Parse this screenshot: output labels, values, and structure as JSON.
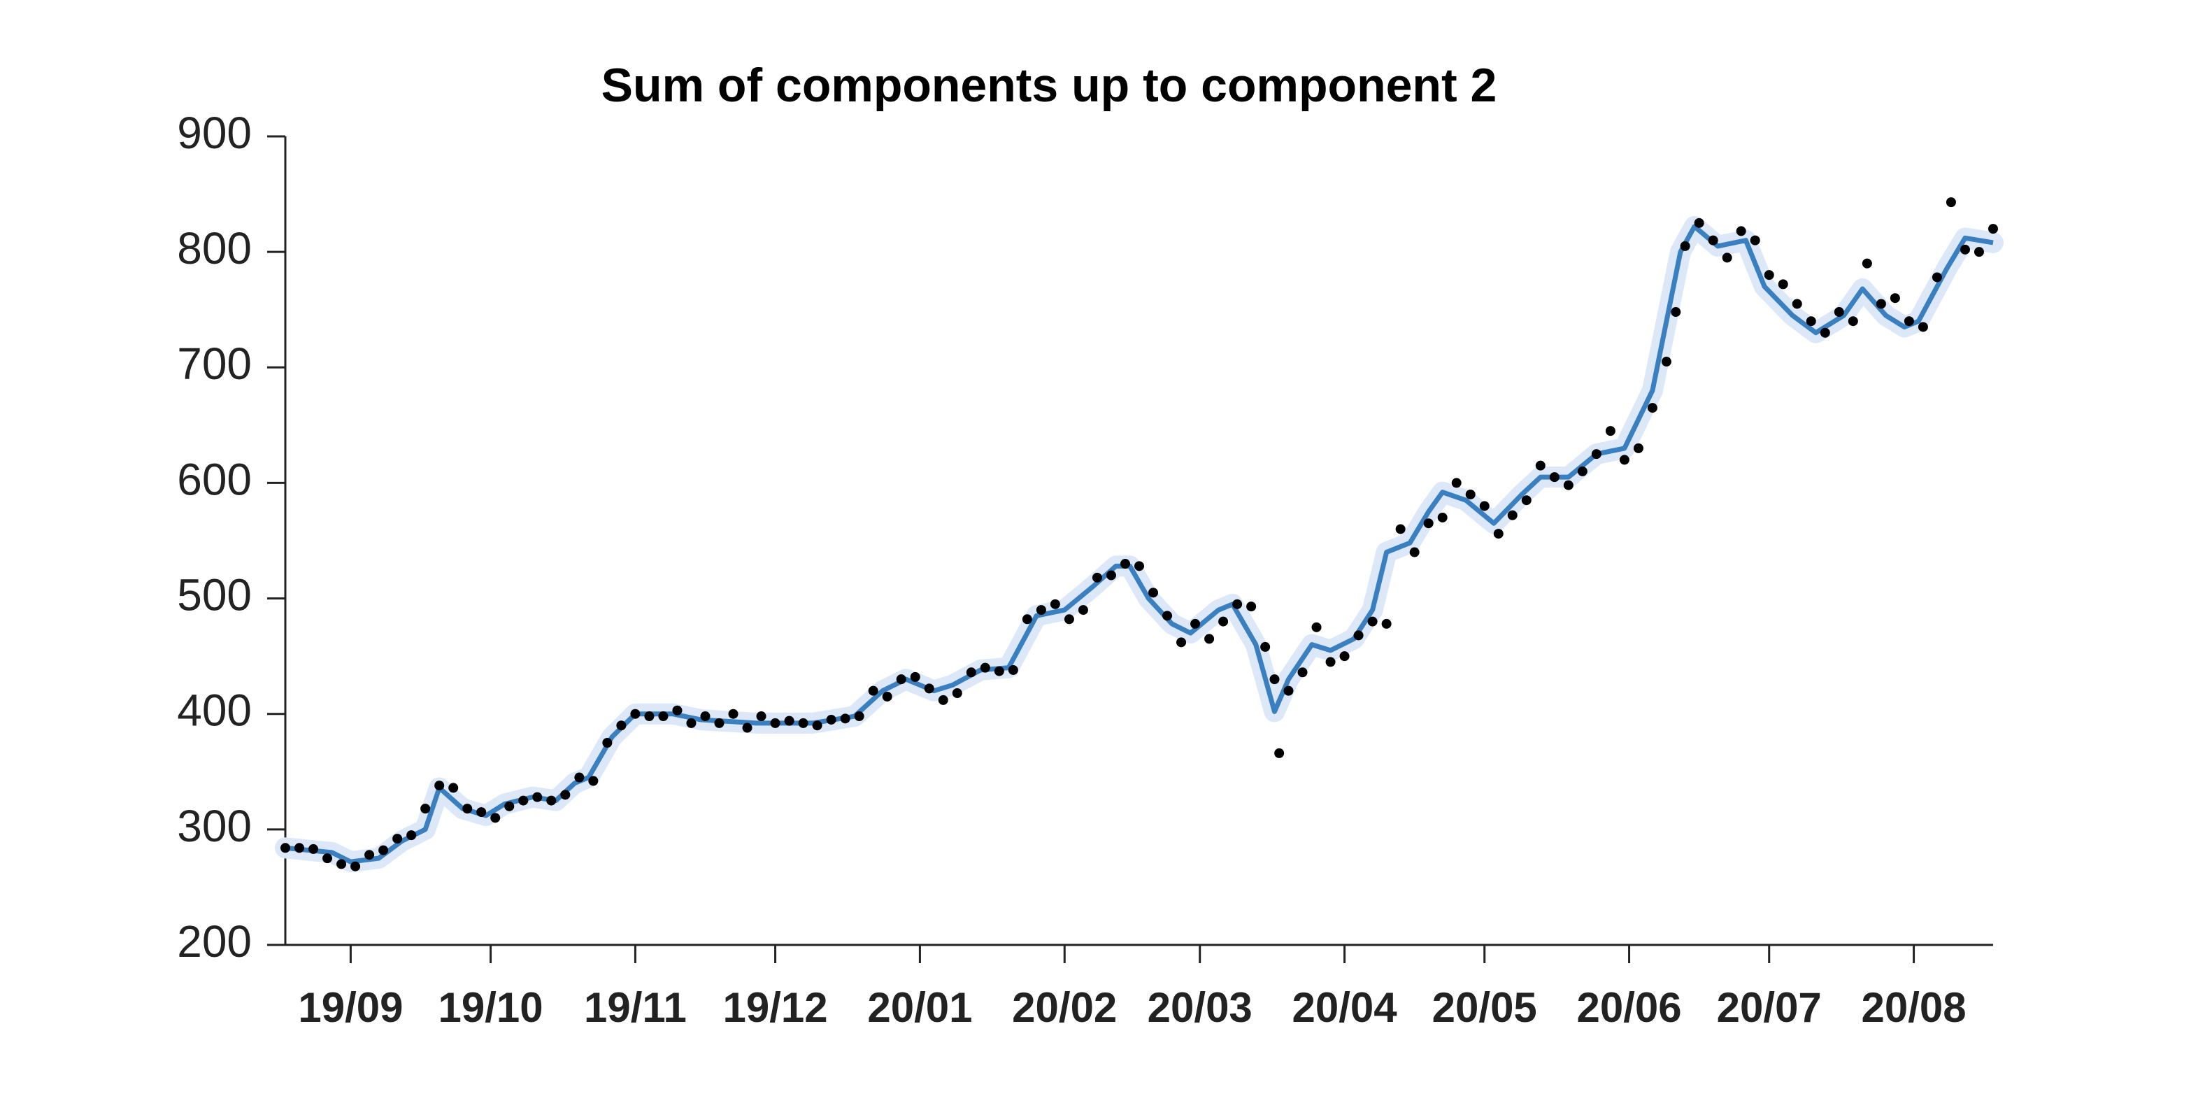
{
  "chart_data": {
    "type": "line",
    "title": "Sum of components up to component 2",
    "xlim": [
      0,
      366
    ],
    "xticks": [
      {
        "value": 14,
        "label": "19/09"
      },
      {
        "value": 44,
        "label": "19/10"
      },
      {
        "value": 75,
        "label": "19/11"
      },
      {
        "value": 105,
        "label": "19/12"
      },
      {
        "value": 136,
        "label": "20/01"
      },
      {
        "value": 167,
        "label": "20/02"
      },
      {
        "value": 196,
        "label": "20/03"
      },
      {
        "value": 227,
        "label": "20/04"
      },
      {
        "value": 257,
        "label": "20/05"
      },
      {
        "value": 288,
        "label": "20/06"
      },
      {
        "value": 318,
        "label": "20/07"
      },
      {
        "value": 349,
        "label": "20/08"
      }
    ],
    "ylim": [
      200,
      900
    ],
    "yticks": [
      200,
      300,
      400,
      500,
      600,
      700,
      800,
      900
    ],
    "series": [
      {
        "type": "line",
        "color": "#3a7fc0",
        "band_color": "#dce8f8",
        "x": [
          0,
          10,
          14,
          20,
          25,
          30,
          33,
          38,
          43,
          47,
          53,
          58,
          62,
          65,
          70,
          75,
          83,
          89,
          101,
          113,
          122,
          128,
          133,
          139,
          143,
          149,
          155,
          161,
          167,
          173,
          178,
          181,
          185,
          190,
          194,
          200,
          203,
          208,
          212,
          215,
          220,
          224,
          229,
          233,
          236,
          241,
          245,
          248,
          253,
          259,
          265,
          269,
          275,
          281,
          287,
          293,
          296,
          299,
          302,
          307,
          313,
          317,
          323,
          328,
          334,
          338,
          343,
          347,
          350,
          356,
          360,
          366
        ],
        "values": [
          284,
          280,
          272,
          275,
          290,
          300,
          336,
          318,
          312,
          322,
          328,
          325,
          340,
          345,
          380,
          400,
          400,
          395,
          392,
          392,
          398,
          420,
          430,
          420,
          425,
          438,
          440,
          485,
          490,
          510,
          528,
          528,
          500,
          478,
          470,
          490,
          495,
          460,
          402,
          430,
          460,
          455,
          465,
          490,
          540,
          548,
          575,
          592,
          585,
          565,
          590,
          605,
          605,
          625,
          630,
          680,
          740,
          800,
          822,
          805,
          810,
          770,
          745,
          730,
          745,
          768,
          745,
          735,
          740,
          785,
          812,
          808
        ]
      },
      {
        "type": "scatter",
        "color": "#000000",
        "x": [
          0,
          3,
          6,
          9,
          12,
          15,
          18,
          21,
          24,
          27,
          30,
          33,
          36,
          39,
          42,
          45,
          48,
          51,
          54,
          57,
          60,
          63,
          66,
          69,
          72,
          75,
          78,
          81,
          84,
          87,
          90,
          93,
          96,
          99,
          102,
          105,
          108,
          111,
          114,
          117,
          120,
          123,
          126,
          129,
          132,
          135,
          138,
          141,
          144,
          147,
          150,
          153,
          156,
          159,
          162,
          165,
          168,
          171,
          174,
          177,
          180,
          183,
          186,
          189,
          192,
          195,
          198,
          201,
          204,
          207,
          210,
          212,
          213,
          215,
          218,
          221,
          224,
          227,
          230,
          233,
          236,
          239,
          242,
          245,
          248,
          251,
          254,
          257,
          260,
          263,
          266,
          269,
          272,
          275,
          278,
          281,
          284,
          287,
          290,
          293,
          296,
          298,
          300,
          303,
          306,
          309,
          312,
          315,
          318,
          321,
          324,
          327,
          330,
          333,
          336,
          339,
          342,
          345,
          348,
          351,
          354,
          357,
          360,
          363,
          366
        ],
        "values": [
          284,
          284,
          283,
          275,
          270,
          268,
          278,
          282,
          292,
          295,
          318,
          338,
          336,
          318,
          315,
          310,
          320,
          325,
          328,
          325,
          330,
          345,
          342,
          375,
          390,
          400,
          398,
          398,
          403,
          392,
          398,
          392,
          400,
          388,
          398,
          392,
          394,
          392,
          390,
          395,
          396,
          398,
          420,
          415,
          430,
          432,
          422,
          412,
          418,
          436,
          440,
          437,
          438,
          482,
          490,
          495,
          482,
          490,
          518,
          520,
          530,
          528,
          505,
          485,
          462,
          478,
          465,
          480,
          495,
          493,
          458,
          430,
          366,
          420,
          436,
          475,
          445,
          450,
          468,
          480,
          478,
          560,
          540,
          565,
          570,
          600,
          590,
          580,
          556,
          572,
          585,
          615,
          605,
          598,
          610,
          625,
          645,
          620,
          630,
          665,
          705,
          748,
          805,
          825,
          810,
          795,
          818,
          810,
          780,
          772,
          755,
          740,
          730,
          748,
          740,
          790,
          755,
          760,
          740,
          735,
          778,
          843,
          802,
          800,
          820
        ]
      }
    ]
  }
}
